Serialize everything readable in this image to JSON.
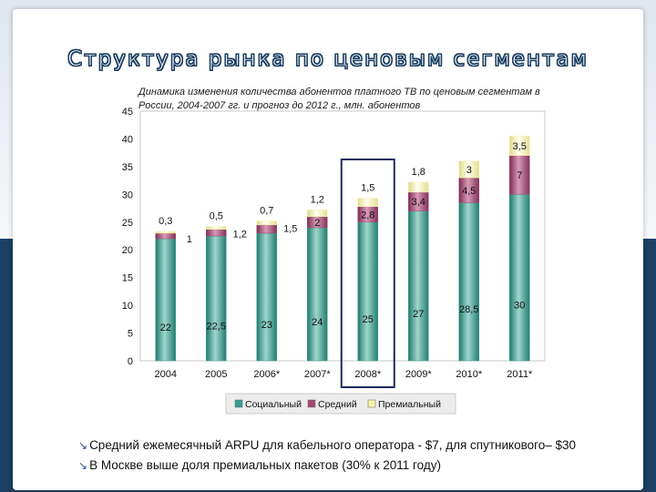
{
  "title": "Структура рынка по ценовым сегментам",
  "chart_data": {
    "type": "bar",
    "stacked": true,
    "title": "Динамика изменения количества абонентов платного ТВ по ценовым сегментам в России, 2004-2007 гг. и прогноз до 2012 г., млн. абонентов",
    "categories": [
      "2004",
      "2005",
      "2006*",
      "2007*",
      "2008*",
      "2009*",
      "2010*",
      "2011*"
    ],
    "highlight_category": "2008*",
    "ylim": [
      0,
      45
    ],
    "yticks": [
      "0",
      "5",
      "10",
      "15",
      "20",
      "25",
      "30",
      "35",
      "40",
      "45"
    ],
    "grid": false,
    "legend_position": "bottom",
    "series": [
      {
        "name": "Социальный",
        "color": "#3a9e8e",
        "values": [
          22,
          22.5,
          23,
          24,
          25,
          27,
          28.5,
          30
        ],
        "labels": [
          "22",
          "22,5",
          "23",
          "24",
          "25",
          "27",
          "28,5",
          "30"
        ]
      },
      {
        "name": "Средний",
        "color": "#a64a72",
        "values": [
          1,
          1.2,
          1.5,
          2,
          2.8,
          3.4,
          4.5,
          7
        ],
        "labels": [
          "1",
          "1,2",
          "1,5",
          "2",
          "2,8",
          "3,4",
          "4,5",
          "7"
        ]
      },
      {
        "name": "Премиальный",
        "color": "#f6f2a8",
        "values": [
          0.3,
          0.5,
          0.7,
          1.2,
          1.5,
          1.8,
          3,
          3.5
        ],
        "labels": [
          "0,3",
          "0,5",
          "0,7",
          "1,2",
          "1,5",
          "1,8",
          "3",
          "3,5"
        ]
      }
    ]
  },
  "bullets": [
    "Средний ежемесячный ARPU для кабельного оператора - $7, для спутникового– $30",
    "В Москве выше доля премиальных пакетов (30% к 2011 году)"
  ],
  "colors": {
    "background": "#1c3f63",
    "highlight_frame": "#1c2a5c"
  }
}
